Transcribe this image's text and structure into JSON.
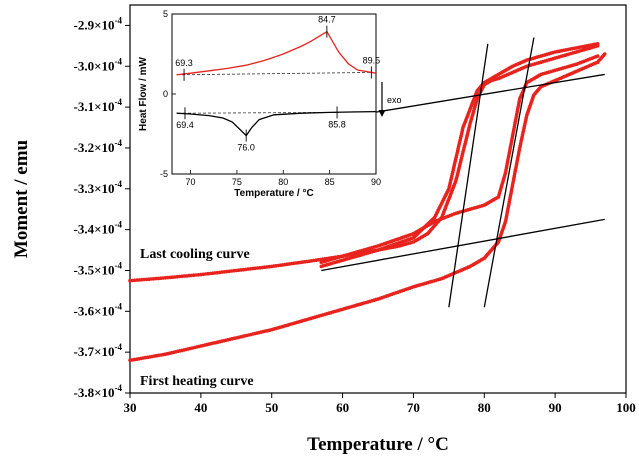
{
  "chart_data": {
    "main": {
      "type": "scatter",
      "xlabel": "Temperature / °C",
      "ylabel": "Moment / emu",
      "xlim": [
        30,
        100
      ],
      "ylim": [
        -0.00038,
        -0.000285
      ],
      "x_ticks": [
        30,
        40,
        50,
        60,
        70,
        80,
        90,
        100
      ],
      "x_tick_labels": [
        "30",
        "40",
        "50",
        "60",
        "70",
        "80",
        "90",
        "100"
      ],
      "y_ticks": [
        -0.00029,
        -0.0003,
        -0.00031,
        -0.00032,
        -0.00033,
        -0.00034,
        -0.00035,
        -0.00036,
        -0.00037,
        -0.00038
      ],
      "y_tick_mantissas": [
        "-2.9",
        "-3.0",
        "-3.1",
        "-3.2",
        "-3.3",
        "-3.4",
        "-3.5",
        "-3.6",
        "-3.7",
        "-3.8"
      ],
      "y_tick_base": "×10",
      "y_tick_exponent": "-4",
      "marker_color": "#e8231d",
      "line_color": "#000000",
      "series": [
        {
          "label": "Last cooling curve",
          "x": [
            30,
            35,
            40,
            45,
            50,
            55,
            60,
            65,
            68,
            70,
            72,
            74,
            76,
            77,
            78,
            79,
            80,
            81,
            82,
            84,
            86,
            88,
            90,
            92,
            94,
            96
          ],
          "y": [
            -0.0003525,
            -0.0003518,
            -0.000351,
            -0.00035,
            -0.000349,
            -0.0003478,
            -0.0003465,
            -0.000345,
            -0.000344,
            -0.000343,
            -0.000341,
            -0.000337,
            -0.000328,
            -0.000321,
            -0.000314,
            -0.000308,
            -0.0003045,
            -0.0003035,
            -0.000303,
            -0.0003015,
            -0.0003,
            -0.000299,
            -0.000298,
            -0.000297,
            -0.000296,
            -0.000295
          ]
        },
        {
          "label": "First heating curve",
          "x": [
            30,
            35,
            40,
            45,
            50,
            55,
            60,
            65,
            70,
            74,
            78,
            80,
            82,
            83,
            84,
            85,
            86,
            87,
            88,
            90,
            92,
            94,
            96,
            97
          ],
          "y": [
            -0.000372,
            -0.0003705,
            -0.0003685,
            -0.0003665,
            -0.0003645,
            -0.000362,
            -0.0003595,
            -0.000357,
            -0.000354,
            -0.000352,
            -0.000349,
            -0.000347,
            -0.000343,
            -0.000338,
            -0.000329,
            -0.00032,
            -0.000312,
            -0.000307,
            -0.000305,
            -0.0003035,
            -0.000302,
            -0.0003005,
            -0.000299,
            -0.000297
          ]
        },
        {
          "label": "",
          "x": [
            57,
            60,
            65,
            70,
            73,
            75,
            77,
            79,
            80,
            82,
            84,
            86,
            88,
            90,
            93,
            96
          ],
          "y": [
            -0.000349,
            -0.0003475,
            -0.000345,
            -0.000342,
            -0.000337,
            -0.00033,
            -0.000315,
            -0.000306,
            -0.000304,
            -0.000302,
            -0.0003,
            -0.0002985,
            -0.0002975,
            -0.0002965,
            -0.0002955,
            -0.0002945
          ]
        },
        {
          "label": "",
          "x": [
            57,
            60,
            65,
            70,
            73,
            76,
            78,
            80,
            82,
            83,
            84,
            85,
            86,
            88,
            90,
            93,
            96
          ],
          "y": [
            -0.000348,
            -0.0003465,
            -0.000344,
            -0.000341,
            -0.000338,
            -0.000336,
            -0.000335,
            -0.000334,
            -0.000332,
            -0.000326,
            -0.000317,
            -0.000308,
            -0.000304,
            -0.000302,
            -0.000301,
            -0.0002995,
            -0.0002975
          ]
        }
      ],
      "tangent_lines": [
        {
          "x": [
            57,
            97
          ],
          "y": [
            -0.00035,
            -0.0003375
          ]
        },
        {
          "x": [
            62,
            97
          ],
          "y": [
            -0.000312,
            -0.000302
          ]
        },
        {
          "x": [
            75,
            80.5
          ],
          "y": [
            -0.000359,
            -0.0002945
          ]
        },
        {
          "x": [
            80,
            87
          ],
          "y": [
            -0.000359,
            -0.000293
          ]
        }
      ]
    },
    "inset": {
      "type": "line",
      "xlabel": "Temperature / °C",
      "ylabel": "Heat Flow / mW",
      "xlim": [
        68,
        90
      ],
      "ylim": [
        -5,
        5
      ],
      "x_ticks": [
        70,
        75,
        80,
        85,
        90
      ],
      "x_tick_labels": [
        "70",
        "75",
        "80",
        "85",
        "90"
      ],
      "y_ticks": [
        5,
        0,
        -5
      ],
      "y_tick_labels": [
        "5",
        "0",
        "-5"
      ],
      "exo_label": "exo",
      "heating_curve": {
        "color": "#e8231d",
        "x": [
          68.5,
          70,
          72,
          74,
          76,
          78,
          80,
          82,
          83,
          84,
          84.7,
          85.3,
          86,
          87,
          88,
          89.5,
          90
        ],
        "y": [
          1.2,
          1.3,
          1.45,
          1.6,
          1.8,
          2.1,
          2.5,
          3.0,
          3.3,
          3.65,
          3.9,
          3.3,
          2.6,
          1.9,
          1.5,
          1.35,
          1.3
        ]
      },
      "cooling_curve": {
        "color": "#000000",
        "x": [
          68.5,
          70,
          72,
          73.5,
          74.5,
          75.3,
          76.0,
          76.6,
          77.4,
          79,
          82,
          85,
          88,
          90
        ],
        "y": [
          -1.2,
          -1.25,
          -1.35,
          -1.5,
          -1.75,
          -2.2,
          -2.6,
          -2.1,
          -1.6,
          -1.3,
          -1.2,
          -1.15,
          -1.12,
          -1.1
        ]
      },
      "baselines": [
        {
          "x": [
            69.3,
            89.5
          ],
          "y": [
            1.2,
            1.35
          ]
        },
        {
          "x": [
            69.4,
            85.8
          ],
          "y": [
            -1.2,
            -1.15
          ]
        }
      ],
      "annotations": [
        {
          "label": "69.3",
          "x": 69.3,
          "y": 1.2,
          "pos": "above"
        },
        {
          "label": "84.7",
          "x": 84.7,
          "y": 3.9,
          "pos": "above"
        },
        {
          "label": "89.5",
          "x": 89.5,
          "y": 1.35,
          "pos": "above"
        },
        {
          "label": "69.4",
          "x": 69.4,
          "y": -1.2,
          "pos": "below"
        },
        {
          "label": "76.0",
          "x": 76.0,
          "y": -2.6,
          "pos": "below"
        },
        {
          "label": "85.8",
          "x": 85.8,
          "y": -1.15,
          "pos": "below"
        }
      ]
    },
    "curve_labels": [
      "Last cooling curve",
      "First heating curve"
    ]
  }
}
